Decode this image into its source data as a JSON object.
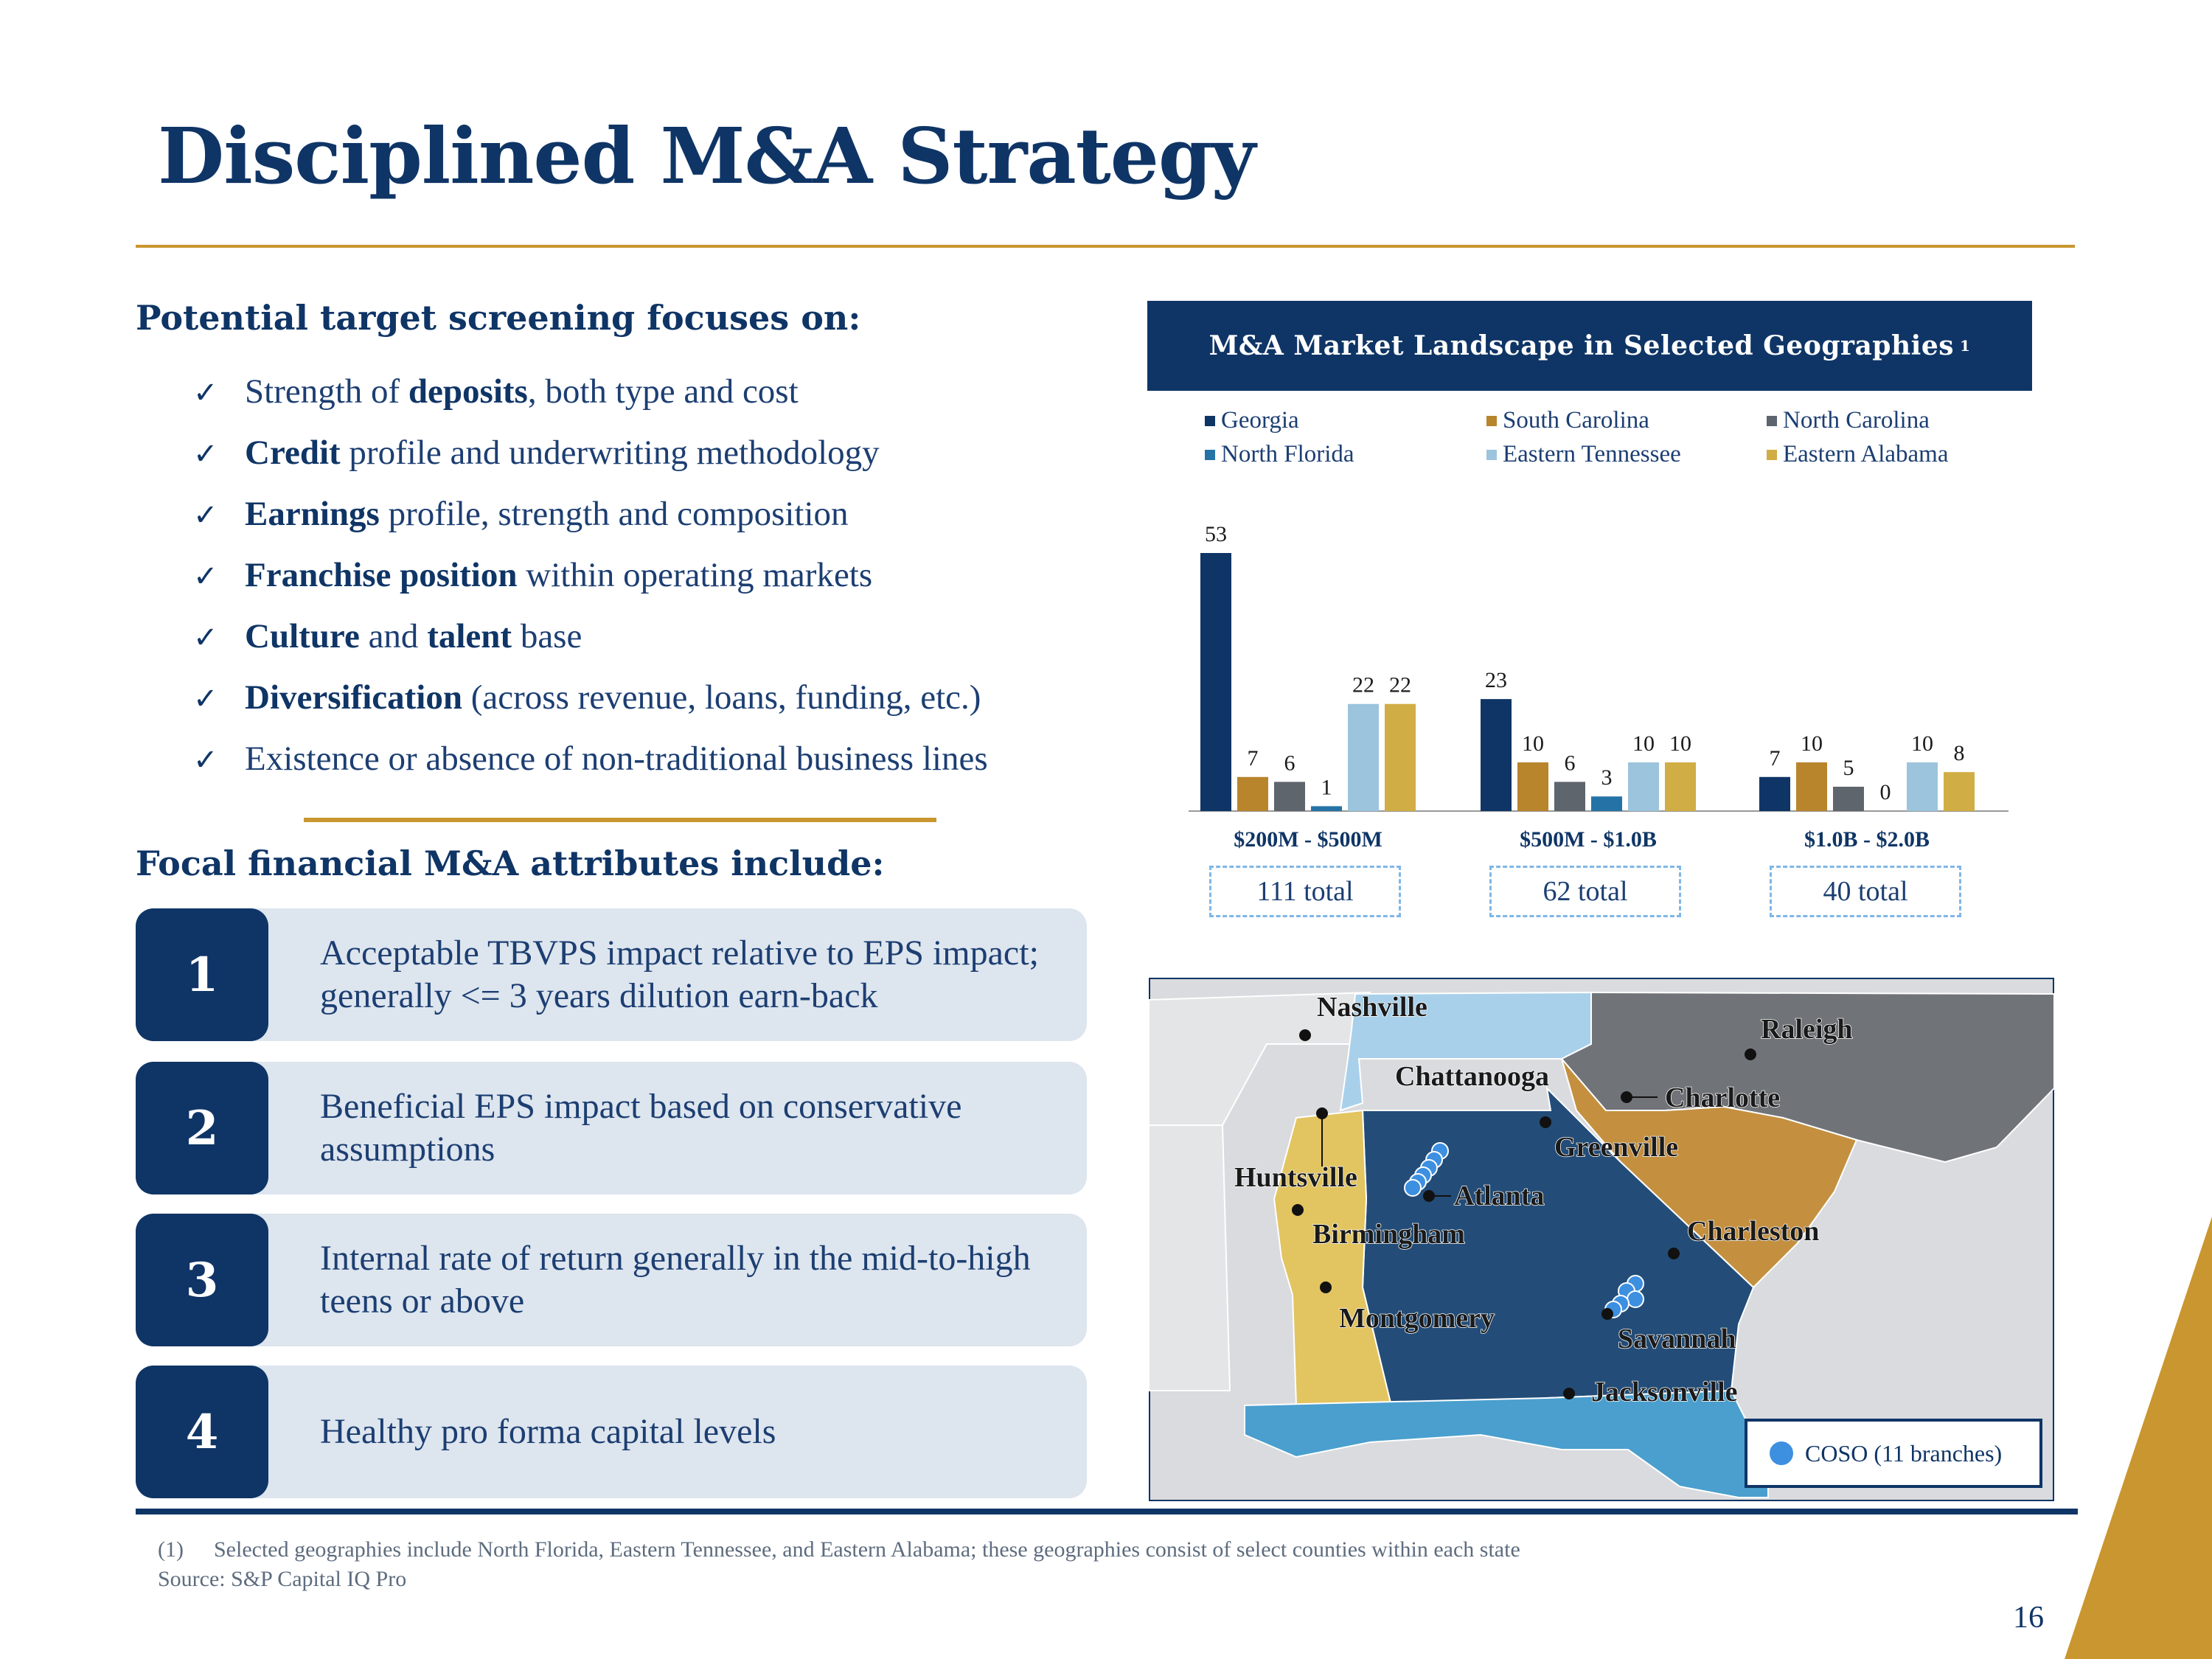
{
  "slide": {
    "title": "Disciplined M&A Strategy",
    "page_number": "16"
  },
  "screening": {
    "heading": "Potential target screening focuses on:",
    "items": [
      {
        "pre": "Strength of ",
        "bold": "deposits",
        "post": ", both type and cost"
      },
      {
        "pre": "",
        "bold": "Credit",
        "post": " profile and underwriting methodology"
      },
      {
        "pre": "",
        "bold": "Earnings",
        "post": " profile, strength and composition"
      },
      {
        "pre": "",
        "bold": "Franchise position",
        "post": " within operating markets"
      },
      {
        "pre": "",
        "bold": "Culture",
        "post": " and ",
        "bold2": "talent",
        "post2": " base"
      },
      {
        "pre": "",
        "bold": "Diversification",
        "post": " (across revenue, loans, funding, etc.)"
      },
      {
        "pre": "Existence or absence of non-traditional business lines",
        "bold": "",
        "post": ""
      }
    ]
  },
  "attributes": {
    "heading": "Focal financial M&A attributes include:",
    "items": [
      {
        "num": "1",
        "text": "Acceptable TBVPS impact relative to EPS impact; generally <= 3 years dilution earn-back"
      },
      {
        "num": "2",
        "text": "Beneficial EPS impact based on conservative assumptions"
      },
      {
        "num": "3",
        "text": "Internal rate of return generally in the mid-to-high teens or above"
      },
      {
        "num": "4",
        "text": "Healthy pro forma capital levels"
      }
    ]
  },
  "chart_header": {
    "title": "M&A Market Landscape in Selected Geographies",
    "footnote_marker": "1"
  },
  "chart_data": {
    "type": "bar",
    "title": "M&A Market Landscape in Selected Geographies",
    "categories": [
      "$200M - $500M",
      "$500M - $1.0B",
      "$1.0B - $2.0B"
    ],
    "series": [
      {
        "name": "Georgia",
        "color": "#0f3566",
        "values": [
          53,
          23,
          7
        ]
      },
      {
        "name": "South Carolina",
        "color": "#b8842c",
        "values": [
          7,
          10,
          10
        ]
      },
      {
        "name": "North Carolina",
        "color": "#5f656d",
        "values": [
          6,
          6,
          5
        ]
      },
      {
        "name": "North Florida",
        "color": "#2573a6",
        "values": [
          1,
          3,
          0
        ]
      },
      {
        "name": "Eastern Tennessee",
        "color": "#9cc4dc",
        "values": [
          22,
          10,
          10
        ]
      },
      {
        "name": "Eastern Alabama",
        "color": "#d1ad45",
        "values": [
          22,
          10,
          8
        ]
      }
    ],
    "totals": [
      "111 total",
      "62 total",
      "40 total"
    ],
    "ylim": [
      0,
      60
    ],
    "legend_position": "top"
  },
  "map": {
    "cities": {
      "nashville": "Nashville",
      "raleigh": "Raleigh",
      "chattanooga": "Chattanooga",
      "charlotte": "Charlotte",
      "greenville": "Greenville",
      "huntsville": "Huntsville",
      "atlanta": "Atlanta",
      "birmingham": "Birmingham",
      "charleston": "Charleston",
      "montgomery": "Montgomery",
      "savannah": "Savannah",
      "jacksonville": "Jacksonville"
    },
    "legend_label": "COSO (11 branches)",
    "colors": {
      "georgia": "#234d78",
      "south_carolina": "#c49040",
      "north_carolina": "#707478",
      "tennessee": "#a8d0ea",
      "alabama": "#e2c460",
      "florida": "#4a9fce",
      "branch": "#3d8fe0"
    }
  },
  "footnotes": {
    "note1_marker": "(1)",
    "note1_text": "Selected geographies include North Florida, Eastern Tennessee, and Eastern Alabama; these geographies consist of select counties within each state",
    "source": "Source: S&P Capital IQ Pro"
  }
}
